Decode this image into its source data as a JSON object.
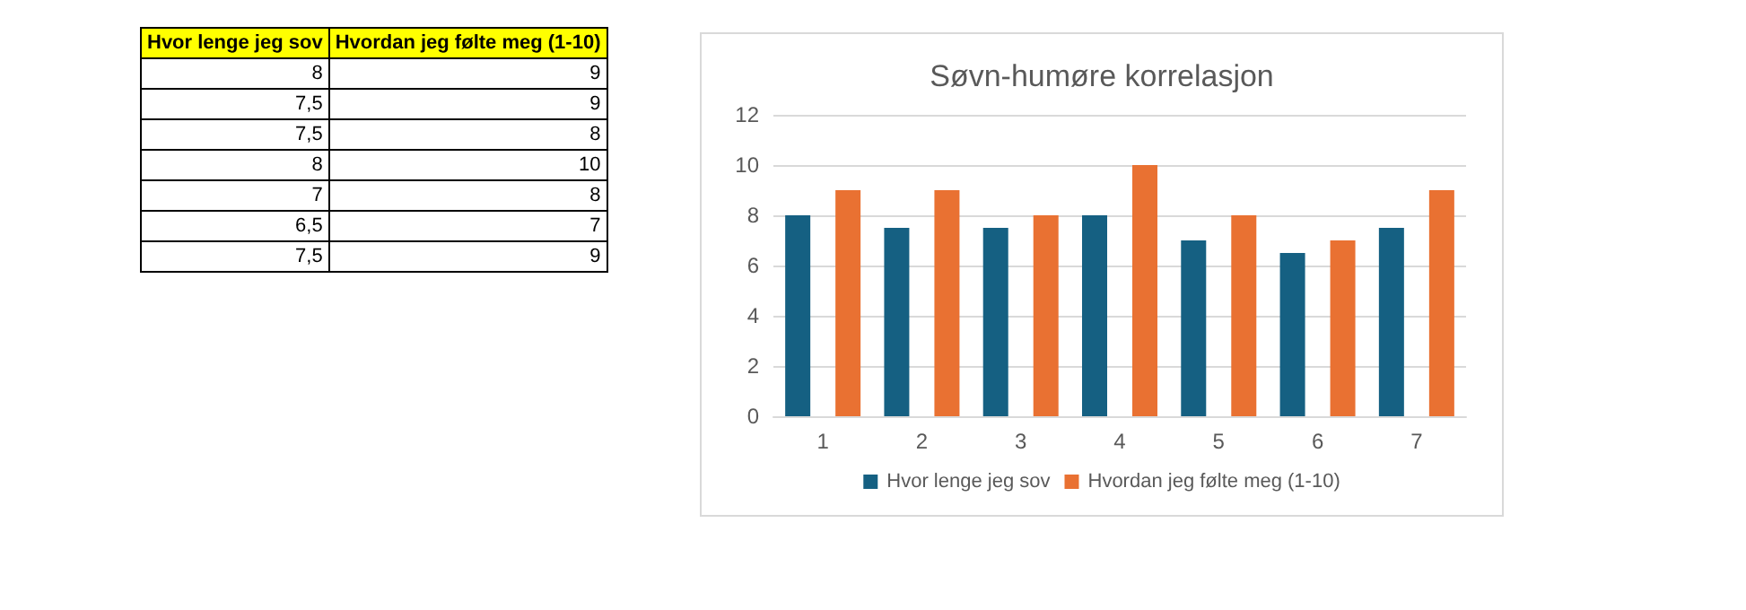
{
  "chart_data": [
    {
      "type": "other",
      "annotations": [
        "Hvor lenge jeg sov",
        "Hvordan jeg følte meg (1-10)",
        "8",
        "9",
        "7,5",
        "9",
        "7,5",
        "8",
        "8",
        "10",
        "7",
        "8",
        "6,5",
        "7",
        "7,5",
        "9"
      ]
    },
    {
      "type": "bar",
      "title": "Søvn-humøre korrelasjon",
      "categories": [
        "1",
        "2",
        "3",
        "4",
        "5",
        "6",
        "7"
      ],
      "series": [
        {
          "name": "Hvor lenge jeg sov",
          "color": "#156082",
          "values": [
            8,
            7.5,
            7.5,
            8,
            7,
            6.5,
            7.5
          ]
        },
        {
          "name": "Hvordan jeg følte meg (1-10)",
          "color": "#e97132",
          "values": [
            9,
            9,
            8,
            10,
            8,
            7,
            9
          ]
        }
      ],
      "ylim": [
        0,
        12
      ],
      "yticks": [
        0,
        2,
        4,
        6,
        8,
        10,
        12
      ],
      "grid": "y",
      "legend": "bottom"
    }
  ]
}
